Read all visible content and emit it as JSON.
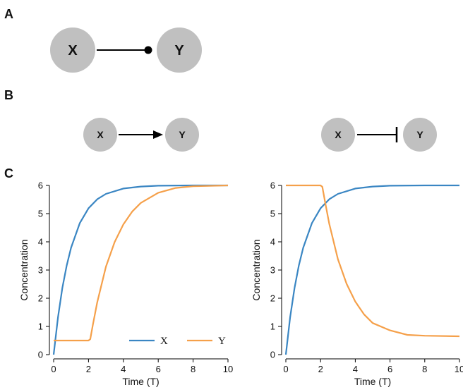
{
  "panels": {
    "a": {
      "letter": "A",
      "nodes": [
        "X",
        "Y"
      ],
      "edge": "dot-end",
      "node_color": "#c0c0c0"
    },
    "b": {
      "letter": "B",
      "left": {
        "nodes": [
          "X",
          "Y"
        ],
        "edge": "arrow"
      },
      "right": {
        "nodes": [
          "X",
          "Y"
        ],
        "edge": "inhibition"
      },
      "node_color": "#c0c0c0"
    },
    "c": {
      "letter": "C"
    }
  },
  "chart_data": [
    {
      "type": "line",
      "xlabel": "Time (T)",
      "ylabel": "Concentration",
      "xlim": [
        0,
        10
      ],
      "ylim": [
        0,
        6
      ],
      "xticks": [
        0,
        2,
        4,
        6,
        8,
        10
      ],
      "yticks": [
        0,
        1,
        2,
        3,
        4,
        5,
        6
      ],
      "legend": "bottom-right",
      "grid": false,
      "series": [
        {
          "name": "X",
          "color": "#3a86c3",
          "x": [
            0,
            0.25,
            0.5,
            0.75,
            1,
            1.5,
            2,
            2.5,
            3,
            4,
            5,
            6,
            8,
            10
          ],
          "y": [
            0,
            1.33,
            2.36,
            3.16,
            3.79,
            4.66,
            5.19,
            5.51,
            5.7,
            5.89,
            5.96,
            5.99,
            6.0,
            6.0
          ]
        },
        {
          "name": "Y",
          "color": "#f5a04a",
          "x": [
            0,
            2.0,
            2.1,
            2.25,
            2.5,
            3,
            3.5,
            4,
            4.5,
            5,
            6,
            7,
            8,
            10
          ],
          "y": [
            0.5,
            0.5,
            0.55,
            1.06,
            1.86,
            3.12,
            3.99,
            4.62,
            5.07,
            5.38,
            5.74,
            5.91,
            5.97,
            6.0
          ]
        }
      ]
    },
    {
      "type": "line",
      "xlabel": "Time (T)",
      "ylabel": "Concentration",
      "xlim": [
        0,
        10
      ],
      "ylim": [
        0,
        6
      ],
      "xticks": [
        0,
        2,
        4,
        6,
        8,
        10
      ],
      "yticks": [
        0,
        1,
        2,
        3,
        4,
        5,
        6
      ],
      "grid": false,
      "series": [
        {
          "name": "X",
          "color": "#3a86c3",
          "x": [
            0,
            0.25,
            0.5,
            0.75,
            1,
            1.5,
            2,
            2.5,
            3,
            4,
            5,
            6,
            8,
            10
          ],
          "y": [
            0,
            1.33,
            2.36,
            3.16,
            3.79,
            4.66,
            5.19,
            5.51,
            5.7,
            5.89,
            5.96,
            5.99,
            6.0,
            6.0
          ]
        },
        {
          "name": "Y",
          "color": "#f5a04a",
          "x": [
            0,
            2.0,
            2.1,
            2.25,
            2.5,
            3,
            3.5,
            4,
            4.5,
            5,
            6,
            7,
            8,
            10
          ],
          "y": [
            6.0,
            6.0,
            5.95,
            5.44,
            4.64,
            3.38,
            2.51,
            1.88,
            1.43,
            1.12,
            0.86,
            0.7,
            0.67,
            0.65
          ]
        }
      ]
    }
  ]
}
